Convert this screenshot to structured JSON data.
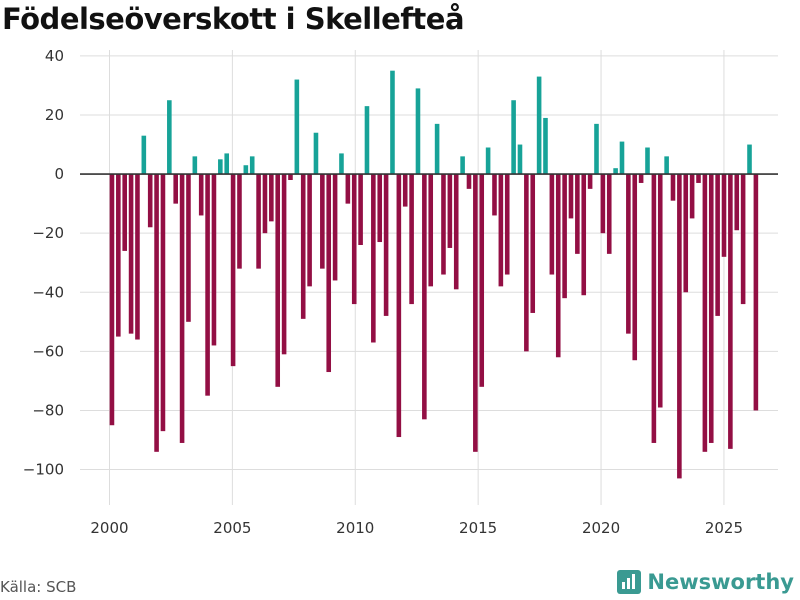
{
  "title": "Födelseöverskott i Skellefteå",
  "source": "Källa: SCB",
  "brand": "Newsworthy",
  "colors": {
    "positive": "#17a398",
    "negative": "#930f44",
    "grid": "#dddddd",
    "zero": "#333333",
    "brand": "#3a9a92"
  },
  "chart_data": {
    "type": "bar",
    "title": "Födelseöverskott i Skellefteå",
    "xlabel": "",
    "ylabel": "",
    "ylim": [
      -112,
      42
    ],
    "yticks": [
      40,
      20,
      0,
      -20,
      -40,
      -60,
      -80,
      -100
    ],
    "ytick_labels": [
      "40",
      "20",
      "0",
      "−20",
      "−40",
      "−60",
      "−80",
      "−100"
    ],
    "xlim": [
      1998.8,
      2027.2
    ],
    "xticks": [
      2000,
      2005,
      2010,
      2015,
      2020,
      2025
    ],
    "xtick_labels": [
      "2000",
      "2005",
      "2010",
      "2015",
      "2020",
      "2025"
    ],
    "frequency": "monthly-ish (approx. every 2.5 months)",
    "values": [
      -85,
      -55,
      -26,
      -54,
      -56,
      13,
      -18,
      -94,
      -87,
      25,
      -10,
      -91,
      -50,
      6,
      -14,
      -75,
      -58,
      5,
      7,
      -65,
      -32,
      3,
      6,
      -32,
      -20,
      -16,
      -72,
      -61,
      -2,
      32,
      -49,
      -38,
      14,
      -32,
      -67,
      -36,
      7,
      -10,
      -44,
      -24,
      23,
      -57,
      -23,
      -48,
      35,
      -89,
      -11,
      -44,
      29,
      -83,
      -38,
      17,
      -34,
      -25,
      -39,
      6,
      -5,
      -94,
      -72,
      9,
      -14,
      -38,
      -34,
      25,
      10,
      -60,
      -47,
      33,
      19,
      -34,
      -62,
      -42,
      -15,
      -27,
      -41,
      -5,
      17,
      -20,
      -27,
      2,
      11,
      -54,
      -63,
      -3,
      9,
      -91,
      -79,
      6,
      -9,
      -103,
      -40,
      -15,
      -3,
      -94,
      -91,
      -48,
      -28,
      -93,
      -19,
      -44,
      10,
      -80
    ]
  }
}
